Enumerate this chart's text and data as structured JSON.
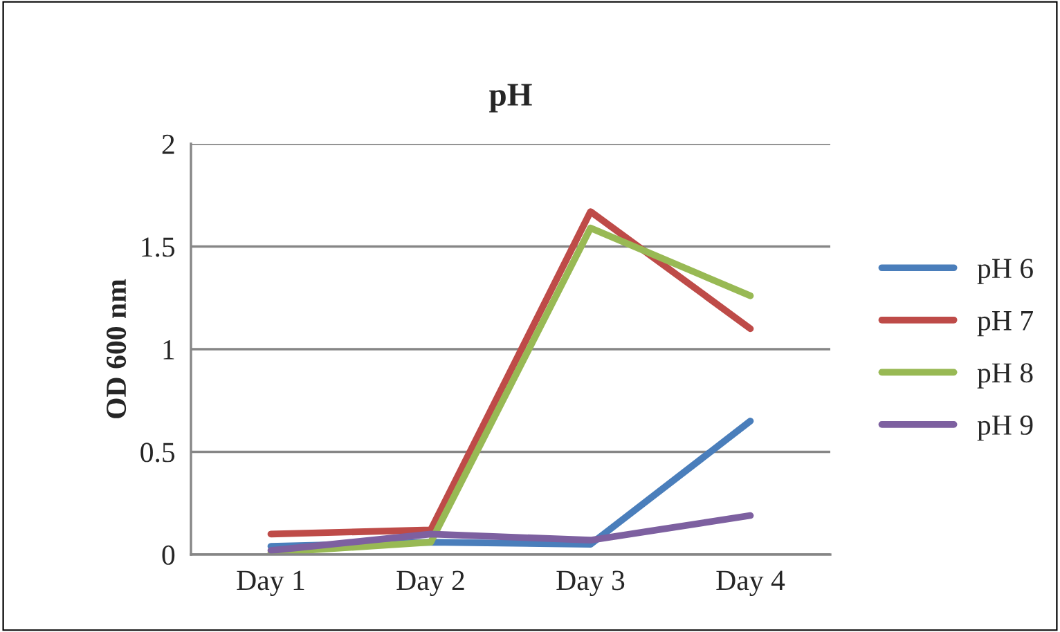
{
  "chart_data": {
    "type": "line",
    "title": "pH",
    "ylabel": "OD 600 nm",
    "categories": [
      "Day 1",
      "Day 2",
      "Day 3",
      "Day 4"
    ],
    "series": [
      {
        "name": "pH 6",
        "color": "#4a7ebb",
        "values": [
          0.04,
          0.06,
          0.05,
          0.65
        ]
      },
      {
        "name": "pH 7",
        "color": "#be4b48",
        "values": [
          0.1,
          0.12,
          1.67,
          1.1
        ]
      },
      {
        "name": "pH 8",
        "color": "#98b954",
        "values": [
          0.01,
          0.06,
          1.59,
          1.26
        ]
      },
      {
        "name": "pH 9",
        "color": "#7d60a0",
        "values": [
          0.02,
          0.1,
          0.07,
          0.19
        ]
      }
    ],
    "ylim": [
      0,
      2
    ],
    "yticks": [
      0,
      0.5,
      1,
      1.5,
      2
    ],
    "grid": "y",
    "legend": "right",
    "marker": "none",
    "line_style": "solid"
  }
}
